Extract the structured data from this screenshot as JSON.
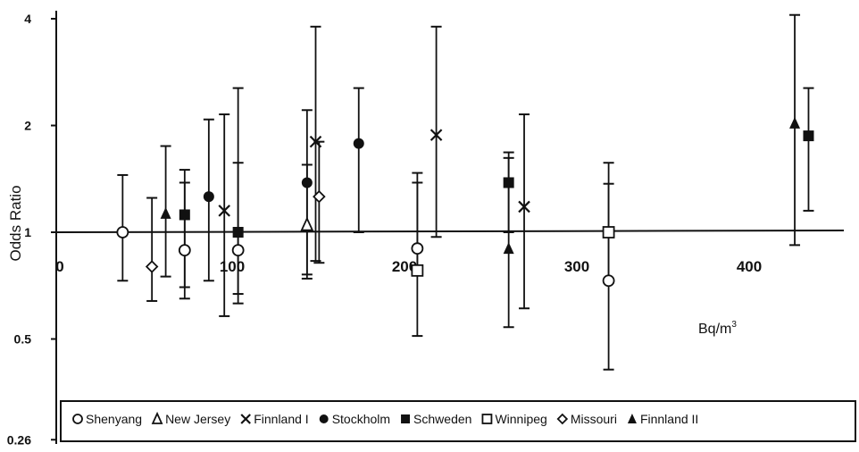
{
  "chart_data": {
    "type": "scatter",
    "title": "",
    "xlabel": "",
    "ylabel": "Odds Ratio",
    "unit_annotation": "Bq/m",
    "unit_superscript": "3",
    "y_scale": "log",
    "xlim": [
      0,
      440
    ],
    "ylim": [
      0.26,
      4
    ],
    "x_ticks": [
      0,
      100,
      200,
      300,
      400
    ],
    "x_tick_labels": [
      "0",
      "100",
      "200",
      "300",
      "400"
    ],
    "y_ticks": [
      0.26,
      0.5,
      1,
      2,
      4
    ],
    "y_tick_labels": [
      "0.26",
      "0.5",
      "1",
      "2",
      "4"
    ],
    "reference_line": 1,
    "grid": false,
    "legend_position": "bottom",
    "series": [
      {
        "name": "Shenyang",
        "marker": "circle-open",
        "points": [
          {
            "x": 38,
            "or": 1.0,
            "lo": 0.73,
            "hi": 1.45
          },
          {
            "x": 74,
            "or": 0.89,
            "lo": 0.65,
            "hi": 1.38
          },
          {
            "x": 105,
            "or": 0.89,
            "lo": 0.67,
            "hi": 1.57
          },
          {
            "x": 209,
            "or": 0.9,
            "lo": 0.79,
            "hi": 1.47
          },
          {
            "x": 320,
            "or": 0.73,
            "lo": 0.41,
            "hi": 1.37
          }
        ]
      },
      {
        "name": "New Jersey",
        "marker": "triangle-open",
        "points": [
          {
            "x": 145,
            "or": 1.05,
            "lo": 0.74,
            "hi": 1.55
          }
        ]
      },
      {
        "name": "Finnland I",
        "marker": "cross",
        "points": [
          {
            "x": 97,
            "or": 1.15,
            "lo": 0.58,
            "hi": 2.15
          },
          {
            "x": 150,
            "or": 1.8,
            "lo": 0.83,
            "hi": 3.8
          },
          {
            "x": 220,
            "or": 1.88,
            "lo": 0.97,
            "hi": 3.8
          },
          {
            "x": 271,
            "or": 1.18,
            "lo": 0.61,
            "hi": 2.15
          }
        ]
      },
      {
        "name": "Stockholm",
        "marker": "circle-filled",
        "points": [
          {
            "x": 88,
            "or": 1.26,
            "lo": 0.73,
            "hi": 2.08
          },
          {
            "x": 145,
            "or": 1.38,
            "lo": 0.76,
            "hi": 2.21
          },
          {
            "x": 175,
            "or": 1.78,
            "lo": 1.0,
            "hi": 2.55
          }
        ]
      },
      {
        "name": "Schweden",
        "marker": "square-filled",
        "points": [
          {
            "x": 74,
            "or": 1.12,
            "lo": 0.7,
            "hi": 1.5
          },
          {
            "x": 105,
            "or": 1.0,
            "lo": 0.63,
            "hi": 2.55
          },
          {
            "x": 262,
            "or": 1.38,
            "lo": 1.0,
            "hi": 1.68
          },
          {
            "x": 436,
            "or": 1.87,
            "lo": 1.15,
            "hi": 2.55
          }
        ]
      },
      {
        "name": "Winnipeg",
        "marker": "square-open",
        "points": [
          {
            "x": 209,
            "or": 0.78,
            "lo": 0.51,
            "hi": 1.38
          },
          {
            "x": 320,
            "or": 1.0,
            "lo": 0.72,
            "hi": 1.57
          }
        ]
      },
      {
        "name": "Missouri",
        "marker": "diamond-open",
        "points": [
          {
            "x": 55,
            "or": 0.8,
            "lo": 0.64,
            "hi": 1.25
          },
          {
            "x": 152,
            "or": 1.26,
            "lo": 0.82,
            "hi": 1.8
          }
        ]
      },
      {
        "name": "Finnland II",
        "marker": "triangle-filled",
        "points": [
          {
            "x": 63,
            "or": 1.13,
            "lo": 0.75,
            "hi": 1.75
          },
          {
            "x": 262,
            "or": 0.9,
            "lo": 0.54,
            "hi": 1.62
          },
          {
            "x": 428,
            "or": 2.03,
            "lo": 0.92,
            "hi": 4.1
          }
        ]
      }
    ]
  }
}
